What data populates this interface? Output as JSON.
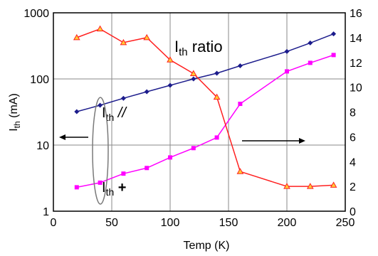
{
  "chart_data": {
    "type": "line",
    "xlabel": "Temp (K)",
    "ylabel_main": "I",
    "ylabel_sub": "th",
    "ylabel_unit": " (mA)",
    "xlim": [
      0,
      250
    ],
    "ylim_left": [
      1,
      1000
    ],
    "yscale_left": "log",
    "ylim_right": [
      0,
      16
    ],
    "x_ticks": [
      "0",
      "50",
      "100",
      "150",
      "200",
      "250"
    ],
    "y_left_ticks": [
      "1",
      "10",
      "100",
      "1000"
    ],
    "y_right_ticks": [
      "0",
      "2",
      "4",
      "6",
      "8",
      "10",
      "12",
      "14",
      "16"
    ],
    "y_right_tick_display": [
      "0",
      "2",
      "4",
      "6",
      "8",
      "10",
      "12",
      "14",
      "16"
    ],
    "grid": true,
    "series": [
      {
        "key": "parallel",
        "axis": "left",
        "color": "#1c1c8c",
        "marker": "diamond",
        "x": [
          20,
          40,
          60,
          80,
          100,
          120,
          140,
          160,
          200,
          220,
          240
        ],
        "y": [
          32,
          40,
          51,
          64,
          80,
          100,
          122,
          158,
          260,
          350,
          480
        ]
      },
      {
        "key": "perpendicular",
        "axis": "left",
        "color": "#ff00ff",
        "marker": "square",
        "x": [
          20,
          40,
          60,
          80,
          100,
          120,
          140,
          160,
          200,
          220,
          240
        ],
        "y": [
          2.3,
          2.7,
          3.7,
          4.5,
          6.5,
          9,
          13,
          42,
          130,
          175,
          230
        ]
      },
      {
        "key": "ratio",
        "axis": "right",
        "color": "#ff2020",
        "marker": "triangle",
        "marker_fill": "#ffcc33",
        "x": [
          20,
          40,
          60,
          80,
          100,
          120,
          140,
          160,
          200,
          220,
          240
        ],
        "y": [
          14.0,
          14.7,
          13.6,
          14.0,
          12.2,
          11.1,
          9.2,
          3.2,
          2.0,
          2.0,
          2.1
        ]
      }
    ],
    "annotations": {
      "ratio": {
        "main": "I",
        "sub": "th",
        "rest": " ratio"
      },
      "parallel": {
        "main": "I",
        "sub": "th",
        "rest": "  //"
      },
      "perp": {
        "main": "I",
        "sub": "th",
        "rest": "  +"
      }
    }
  }
}
